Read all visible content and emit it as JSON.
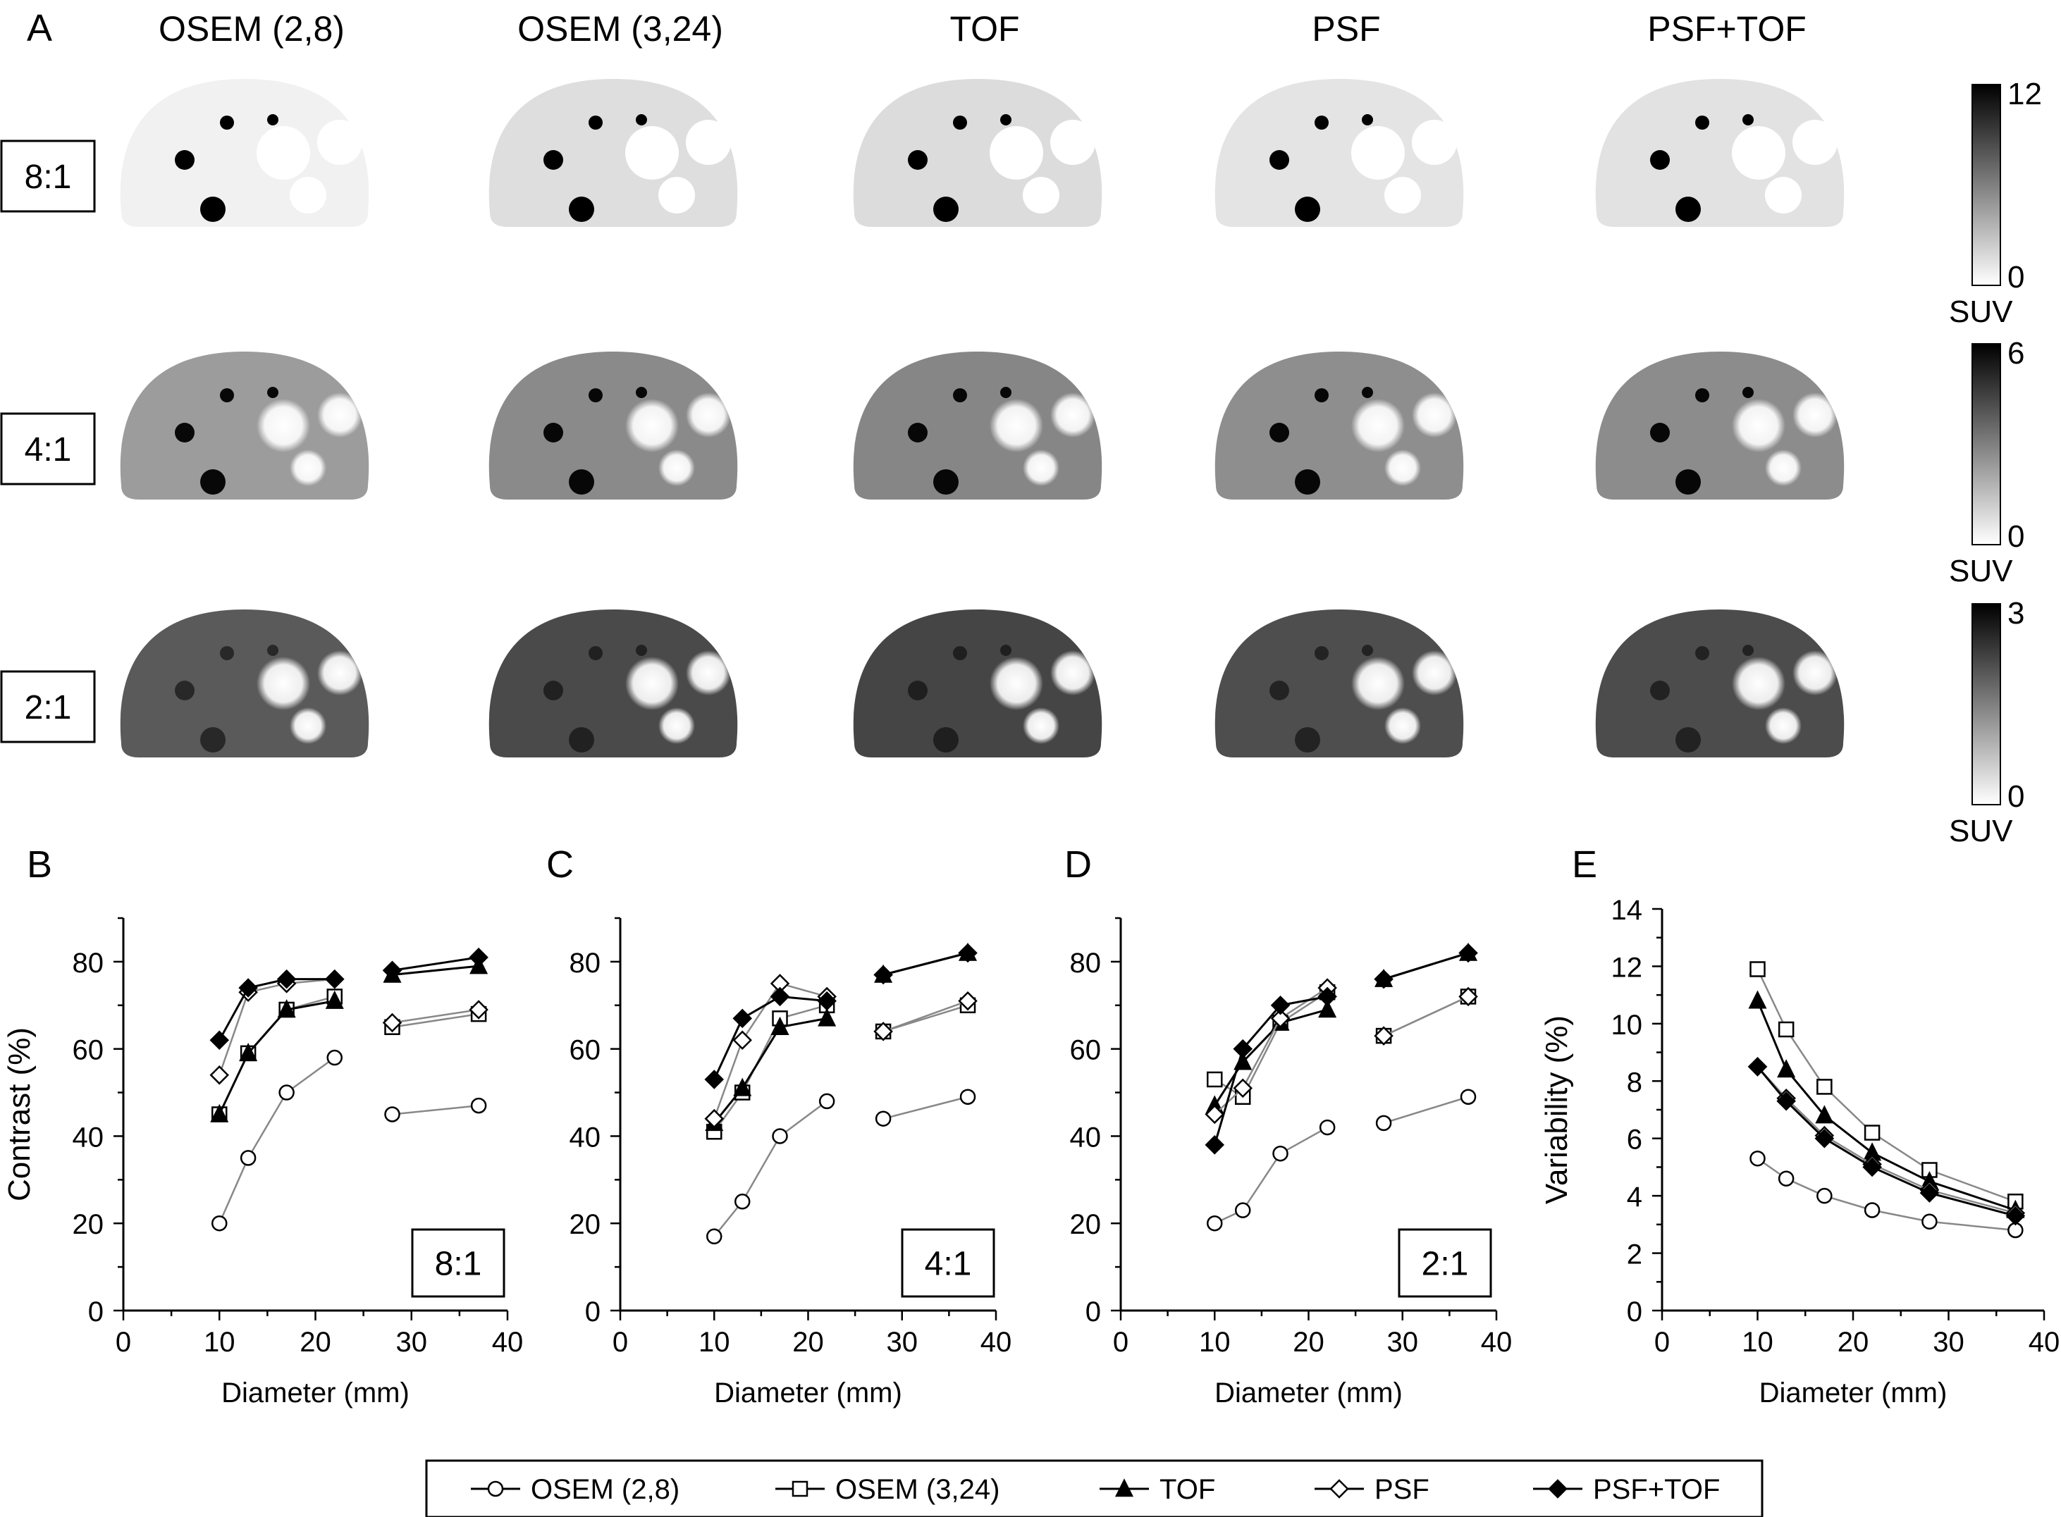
{
  "panel_a": {
    "letter": "A",
    "columns": [
      "OSEM (2,8)",
      "OSEM (3,24)",
      "TOF",
      "PSF",
      "PSF+TOF"
    ],
    "rows": [
      {
        "ratio": "8:1",
        "scale_max": "12",
        "scale_min": "0",
        "unit": "SUV"
      },
      {
        "ratio": "4:1",
        "scale_max": "6",
        "scale_min": "0",
        "unit": "SUV"
      },
      {
        "ratio": "2:1",
        "scale_max": "3",
        "scale_min": "0",
        "unit": "SUV"
      }
    ]
  },
  "chart_data": [
    {
      "type": "line",
      "panel": "B",
      "xlabel": "Diameter (mm)",
      "ylabel": "Contrast (%)",
      "xlim": [
        0,
        40
      ],
      "ylim": [
        0,
        90
      ],
      "xticks": [
        0,
        10,
        20,
        30,
        40
      ],
      "yticks": [
        0,
        20,
        40,
        60,
        80
      ],
      "ratio_label": "8:1",
      "series": [
        {
          "name": "OSEM (2,8)",
          "x": [
            10,
            13,
            17,
            22,
            28,
            37
          ],
          "values": [
            20,
            35,
            50,
            58,
            45,
            47
          ]
        },
        {
          "name": "OSEM (3,24)",
          "x": [
            10,
            13,
            17,
            22,
            28,
            37
          ],
          "values": [
            45,
            59,
            69,
            72,
            65,
            68
          ]
        },
        {
          "name": "TOF",
          "x": [
            10,
            13,
            17,
            22,
            28,
            37
          ],
          "values": [
            45,
            59,
            69,
            71,
            77,
            79
          ]
        },
        {
          "name": "PSF",
          "x": [
            10,
            13,
            17,
            22,
            28,
            37
          ],
          "values": [
            54,
            73,
            75,
            76,
            66,
            69
          ]
        },
        {
          "name": "PSF+TOF",
          "x": [
            10,
            13,
            17,
            22,
            28,
            37
          ],
          "values": [
            62,
            74,
            76,
            76,
            78,
            81
          ]
        }
      ]
    },
    {
      "type": "line",
      "panel": "C",
      "xlabel": "Diameter (mm)",
      "ylabel": "",
      "xlim": [
        0,
        40
      ],
      "ylim": [
        0,
        90
      ],
      "xticks": [
        0,
        10,
        20,
        30,
        40
      ],
      "yticks": [
        0,
        20,
        40,
        60,
        80
      ],
      "ratio_label": "4:1",
      "series": [
        {
          "name": "OSEM (2,8)",
          "x": [
            10,
            13,
            17,
            22,
            28,
            37
          ],
          "values": [
            17,
            25,
            40,
            48,
            44,
            49
          ]
        },
        {
          "name": "OSEM (3,24)",
          "x": [
            10,
            13,
            17,
            22,
            28,
            37
          ],
          "values": [
            41,
            50,
            67,
            70,
            64,
            70
          ]
        },
        {
          "name": "TOF",
          "x": [
            10,
            13,
            17,
            22,
            28,
            37
          ],
          "values": [
            43,
            51,
            65,
            67,
            77,
            82
          ]
        },
        {
          "name": "PSF",
          "x": [
            10,
            13,
            17,
            22,
            28,
            37
          ],
          "values": [
            44,
            62,
            75,
            72,
            64,
            71
          ]
        },
        {
          "name": "PSF+TOF",
          "x": [
            10,
            13,
            17,
            22,
            28,
            37
          ],
          "values": [
            53,
            67,
            72,
            71,
            77,
            82
          ]
        }
      ]
    },
    {
      "type": "line",
      "panel": "D",
      "xlabel": "Diameter (mm)",
      "ylabel": "",
      "xlim": [
        0,
        40
      ],
      "ylim": [
        0,
        90
      ],
      "xticks": [
        0,
        10,
        20,
        30,
        40
      ],
      "yticks": [
        0,
        20,
        40,
        60,
        80
      ],
      "ratio_label": "2:1",
      "series": [
        {
          "name": "OSEM (2,8)",
          "x": [
            10,
            13,
            17,
            22,
            28,
            37
          ],
          "values": [
            20,
            23,
            36,
            42,
            43,
            49
          ]
        },
        {
          "name": "OSEM (3,24)",
          "x": [
            10,
            13,
            17,
            22,
            28,
            37
          ],
          "values": [
            53,
            49,
            66,
            73,
            63,
            72
          ]
        },
        {
          "name": "TOF",
          "x": [
            10,
            13,
            17,
            22,
            28,
            37
          ],
          "values": [
            47,
            57,
            66,
            69,
            76,
            82
          ]
        },
        {
          "name": "PSF",
          "x": [
            10,
            13,
            17,
            22,
            28,
            37
          ],
          "values": [
            45,
            51,
            67,
            74,
            63,
            72
          ]
        },
        {
          "name": "PSF+TOF",
          "x": [
            10,
            13,
            17,
            22,
            28,
            37
          ],
          "values": [
            38,
            60,
            70,
            72,
            76,
            82
          ]
        }
      ]
    },
    {
      "type": "line",
      "panel": "E",
      "xlabel": "Diameter (mm)",
      "ylabel": "Variability (%)",
      "xlim": [
        0,
        40
      ],
      "ylim": [
        0,
        14
      ],
      "xticks": [
        0,
        10,
        20,
        30,
        40
      ],
      "yticks": [
        0,
        2,
        4,
        6,
        8,
        10,
        12,
        14
      ],
      "ratio_label": "",
      "series": [
        {
          "name": "OSEM (2,8)",
          "x": [
            10,
            13,
            17,
            22,
            28,
            37
          ],
          "values": [
            5.3,
            4.6,
            4.0,
            3.5,
            3.1,
            2.8
          ]
        },
        {
          "name": "OSEM (3,24)",
          "x": [
            10,
            13,
            17,
            22,
            28,
            37
          ],
          "values": [
            11.9,
            9.8,
            7.8,
            6.2,
            4.9,
            3.8
          ]
        },
        {
          "name": "TOF",
          "x": [
            10,
            13,
            17,
            22,
            28,
            37
          ],
          "values": [
            10.8,
            8.4,
            6.8,
            5.5,
            4.5,
            3.5
          ]
        },
        {
          "name": "PSF",
          "x": [
            10,
            13,
            17,
            22,
            28,
            37
          ],
          "values": [
            8.5,
            7.4,
            6.1,
            5.1,
            4.2,
            3.4
          ]
        },
        {
          "name": "PSF+TOF",
          "x": [
            10,
            13,
            17,
            22,
            28,
            37
          ],
          "values": [
            8.5,
            7.3,
            6.0,
            5.0,
            4.1,
            3.3
          ]
        }
      ]
    }
  ],
  "legend": [
    {
      "name": "OSEM (2,8)",
      "marker": "circle-open"
    },
    {
      "name": "OSEM (3,24)",
      "marker": "square-open"
    },
    {
      "name": "TOF",
      "marker": "triangle-filled"
    },
    {
      "name": "PSF",
      "marker": "diamond-open"
    },
    {
      "name": "PSF+TOF",
      "marker": "diamond-filled"
    }
  ]
}
